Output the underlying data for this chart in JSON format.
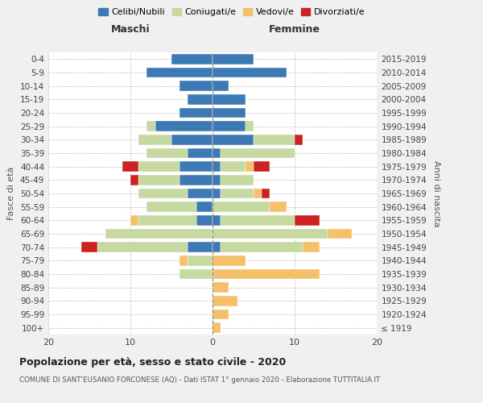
{
  "age_groups": [
    "100+",
    "95-99",
    "90-94",
    "85-89",
    "80-84",
    "75-79",
    "70-74",
    "65-69",
    "60-64",
    "55-59",
    "50-54",
    "45-49",
    "40-44",
    "35-39",
    "30-34",
    "25-29",
    "20-24",
    "15-19",
    "10-14",
    "5-9",
    "0-4"
  ],
  "birth_years": [
    "≤ 1919",
    "1920-1924",
    "1925-1929",
    "1930-1934",
    "1935-1939",
    "1940-1944",
    "1945-1949",
    "1950-1954",
    "1955-1959",
    "1960-1964",
    "1965-1969",
    "1970-1974",
    "1975-1979",
    "1980-1984",
    "1985-1989",
    "1990-1994",
    "1995-1999",
    "2000-2004",
    "2005-2009",
    "2010-2014",
    "2015-2019"
  ],
  "males": {
    "celibi": [
      0,
      0,
      0,
      0,
      0,
      0,
      3,
      0,
      2,
      2,
      3,
      4,
      4,
      3,
      5,
      7,
      4,
      3,
      4,
      8,
      5
    ],
    "coniugati": [
      0,
      0,
      0,
      0,
      4,
      3,
      11,
      13,
      7,
      6,
      6,
      5,
      5,
      5,
      4,
      1,
      0,
      0,
      0,
      0,
      0
    ],
    "vedovi": [
      0,
      0,
      0,
      0,
      0,
      1,
      0,
      0,
      1,
      0,
      0,
      0,
      0,
      0,
      0,
      0,
      0,
      0,
      0,
      0,
      0
    ],
    "divorziati": [
      0,
      0,
      0,
      0,
      0,
      0,
      2,
      0,
      0,
      0,
      0,
      1,
      2,
      0,
      0,
      0,
      0,
      0,
      0,
      0,
      0
    ]
  },
  "females": {
    "nubili": [
      0,
      0,
      0,
      0,
      0,
      0,
      1,
      0,
      1,
      0,
      1,
      1,
      1,
      1,
      5,
      4,
      4,
      4,
      2,
      9,
      5
    ],
    "coniugate": [
      0,
      0,
      0,
      0,
      0,
      0,
      10,
      14,
      9,
      7,
      4,
      4,
      3,
      9,
      5,
      1,
      0,
      0,
      0,
      0,
      0
    ],
    "vedove": [
      1,
      2,
      3,
      2,
      13,
      4,
      2,
      3,
      0,
      2,
      1,
      0,
      1,
      0,
      0,
      0,
      0,
      0,
      0,
      0,
      0
    ],
    "divorziate": [
      0,
      0,
      0,
      0,
      0,
      0,
      0,
      0,
      3,
      0,
      1,
      0,
      2,
      0,
      1,
      0,
      0,
      0,
      0,
      0,
      0
    ]
  },
  "colors": {
    "celibi_nubili": "#3d7ab5",
    "coniugati_e": "#c5d9a0",
    "vedovi_e": "#f5c06a",
    "divorziati_e": "#cc2222"
  },
  "xlim": [
    -20,
    20
  ],
  "xticks": [
    -20,
    -10,
    0,
    10,
    20
  ],
  "xticklabels": [
    "20",
    "10",
    "0",
    "10",
    "20"
  ],
  "title": "Popolazione per età, sesso e stato civile - 2020",
  "subtitle": "COMUNE DI SANT'EUSANIO FORCONESE (AQ) - Dati ISTAT 1° gennaio 2020 - Elaborazione TUTTITALIA.IT",
  "ylabel_left": "Fasce di età",
  "ylabel_right": "Anni di nascita",
  "maschi_label": "Maschi",
  "femmine_label": "Femmine",
  "legend_labels": [
    "Celibi/Nubili",
    "Coniugati/e",
    "Vedovi/e",
    "Divorziati/e"
  ],
  "bg_color": "#f0f0f0",
  "plot_bg_color": "#ffffff"
}
